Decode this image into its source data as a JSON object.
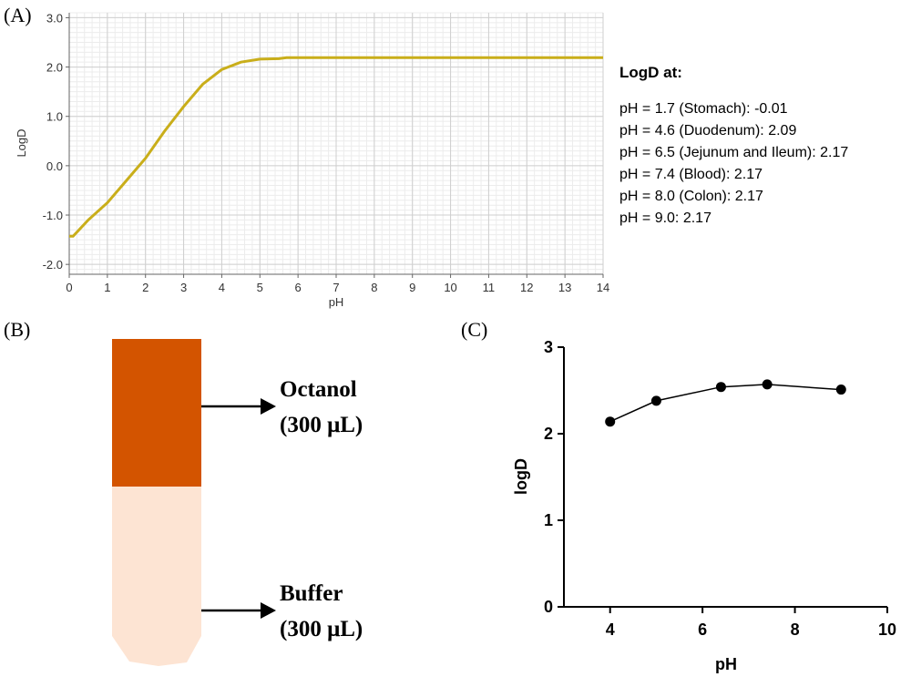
{
  "panels": {
    "a": {
      "label": "(A)"
    },
    "b": {
      "label": "(B)"
    },
    "c": {
      "label": "(C)"
    }
  },
  "logd_info": {
    "title": "LogD at:",
    "lines": [
      "pH = 1.7  (Stomach): -0.01",
      "pH = 4.6  (Duodenum): 2.09",
      "pH = 6.5  (Jejunum and Ileum): 2.17",
      "pH = 7.4  (Blood): 2.17",
      "pH = 8.0  (Colon): 2.17",
      "pH = 9.0: 2.17"
    ]
  },
  "tube": {
    "octanol_label": "Octanol",
    "octanol_volume": "(300 μL)",
    "buffer_label": "Buffer",
    "buffer_volume": "(300 μL)",
    "colors": {
      "octanol": "#d35400",
      "buffer": "#fde4d3"
    }
  },
  "chart_data": [
    {
      "id": "panel-a",
      "type": "line",
      "xlabel": "pH",
      "ylabel": "LogD",
      "xlim": [
        0,
        14
      ],
      "ylim": [
        -2.2,
        3.1
      ],
      "xticks": [
        "0",
        "1",
        "2",
        "3",
        "4",
        "5",
        "6",
        "7",
        "8",
        "9",
        "10",
        "11",
        "12",
        "13",
        "14"
      ],
      "yticks": [
        "-2.0",
        "-1.0",
        "0.0",
        "1.0",
        "2.0",
        "3.0"
      ],
      "grid": true,
      "line_color": "#c9ae1a",
      "x": [
        0,
        0.1,
        0.5,
        1,
        1.5,
        2,
        2.5,
        3,
        3.5,
        4,
        4.5,
        5,
        5.5,
        5.7,
        6,
        7,
        8,
        9,
        10,
        11,
        12,
        13,
        14
      ],
      "y": [
        -1.43,
        -1.43,
        -1.1,
        -0.75,
        -0.3,
        0.15,
        0.7,
        1.2,
        1.65,
        1.95,
        2.1,
        2.16,
        2.17,
        2.19,
        2.19,
        2.19,
        2.19,
        2.19,
        2.19,
        2.19,
        2.19,
        2.19,
        2.19
      ]
    },
    {
      "id": "panel-c",
      "type": "line",
      "xlabel": "pH",
      "ylabel": "logD",
      "xlim": [
        3,
        10
      ],
      "ylim": [
        0,
        3
      ],
      "xticks": [
        "4",
        "6",
        "8",
        "10"
      ],
      "yticks": [
        "0",
        "1",
        "2",
        "3"
      ],
      "grid": false,
      "x": [
        4,
        5,
        6.4,
        7.4,
        9
      ],
      "y": [
        2.14,
        2.38,
        2.54,
        2.57,
        2.51
      ]
    }
  ]
}
